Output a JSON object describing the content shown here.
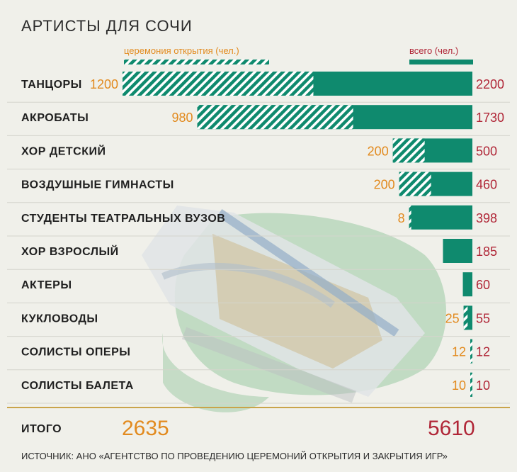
{
  "colors": {
    "total": "#0f8a6e",
    "opening_hatch": "#0f8a6e",
    "opening_text": "#e28a1e",
    "total_text": "#b02637",
    "background": "#f0f0ea"
  },
  "chart_data": {
    "type": "bar",
    "orientation": "horizontal",
    "title": "АРТИСТЫ ДЛЯ СОЧИ",
    "legend": {
      "opening": "церемония открытия (чел.)",
      "total": "всего (чел.)",
      "placement": "top"
    },
    "categories": [
      "ТАНЦОРЫ",
      "АКРОБАТЫ",
      "ХОР ДЕТСКИЙ",
      "ВОЗДУШНЫЕ ГИМНАСТЫ",
      "СТУДЕНТЫ ТЕАТРАЛЬНЫХ ВУЗОВ",
      "ХОР ВЗРОСЛЫЙ",
      "АКТЕРЫ",
      "КУКЛОВОДЫ",
      "СОЛИСТЫ ОПЕРЫ",
      "СОЛИСТЫ БАЛЕТА"
    ],
    "series": [
      {
        "name": "церемония открытия (чел.)",
        "values": [
          1200,
          980,
          200,
          200,
          8,
          null,
          null,
          25,
          12,
          10
        ],
        "labels": [
          "1200",
          "980",
          "200",
          "200",
          "8",
          "",
          "",
          "25",
          "12",
          "10"
        ]
      },
      {
        "name": "всего (чел.)",
        "values": [
          2200,
          1730,
          500,
          460,
          398,
          185,
          60,
          55,
          12,
          10
        ],
        "labels": [
          "2200",
          "1730",
          "500",
          "460",
          "398",
          "185",
          "60",
          "55",
          "12",
          "10"
        ]
      }
    ],
    "totals": {
      "label": "ИТОГО",
      "opening": "2635",
      "total": "5610"
    },
    "xlim": [
      0,
      2200
    ],
    "grid": false
  },
  "source": "ИСТОЧНИК: АНО «АГЕНТСТВО ПО ПРОВЕДЕНИЮ ЦЕРЕМОНИЙ ОТКРЫТИЯ И ЗАКРЫТИЯ ИГР»"
}
